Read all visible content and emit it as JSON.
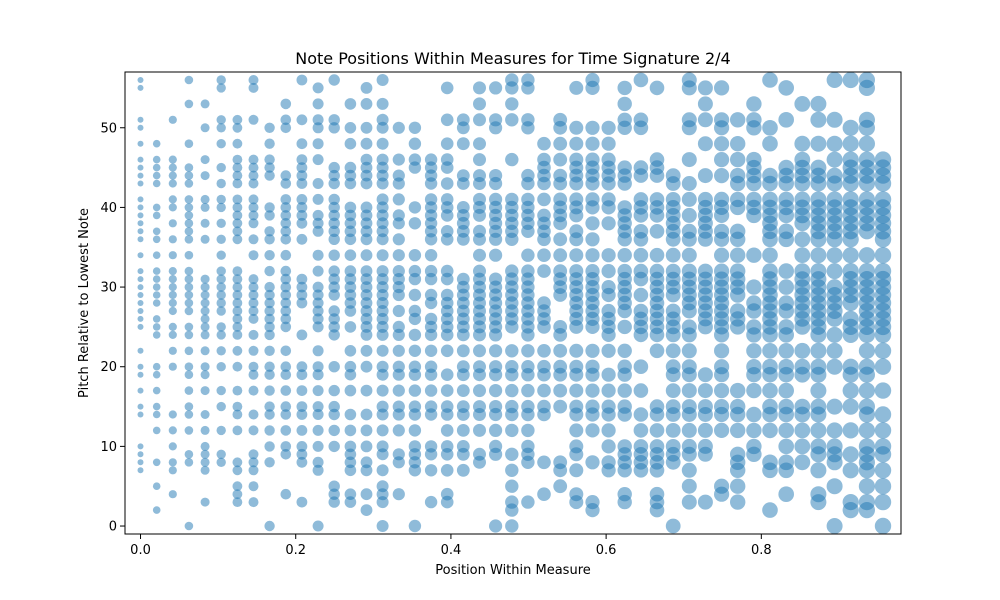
{
  "chart_data": {
    "type": "scatter",
    "title": "Note Positions Within Measures for Time Signature 2/4",
    "xlabel": "Position Within Measure",
    "ylabel": "Pitch Relative to Lowest Note",
    "xlim": [
      -0.02,
      0.98
    ],
    "ylim": [
      -1,
      57
    ],
    "xticks": [
      0.0,
      0.2,
      0.4,
      0.6,
      0.8
    ],
    "xtick_labels": [
      "0.0",
      "0.2",
      "0.4",
      "0.6",
      "0.8"
    ],
    "yticks": [
      0,
      10,
      20,
      30,
      40,
      50
    ],
    "ytick_labels": [
      "0",
      "10",
      "20",
      "30",
      "40",
      "50"
    ],
    "color": "#1f77b4",
    "alpha": 0.5,
    "grid": false,
    "legend": "none",
    "marker_size_encodes": "position within measure (larger markers further right)",
    "x_grid_step": 0.0208,
    "x_positions_count": 47,
    "pitch_levels_dense": [
      0,
      2,
      3,
      4,
      5,
      7,
      8,
      9,
      10,
      12,
      14,
      15,
      17,
      19,
      20,
      22,
      24,
      25,
      26,
      27,
      28,
      29,
      30,
      31,
      32,
      34,
      36,
      37,
      38,
      39,
      40,
      41,
      43,
      44,
      45,
      46,
      48,
      50,
      51,
      53,
      55,
      56
    ],
    "pitch_range": [
      0,
      56
    ],
    "note": "Several thousand notes plotted; points cluster on discrete x positions (multiples of ~1/48) and integer pitches, densest between pitch 12 and 44."
  }
}
